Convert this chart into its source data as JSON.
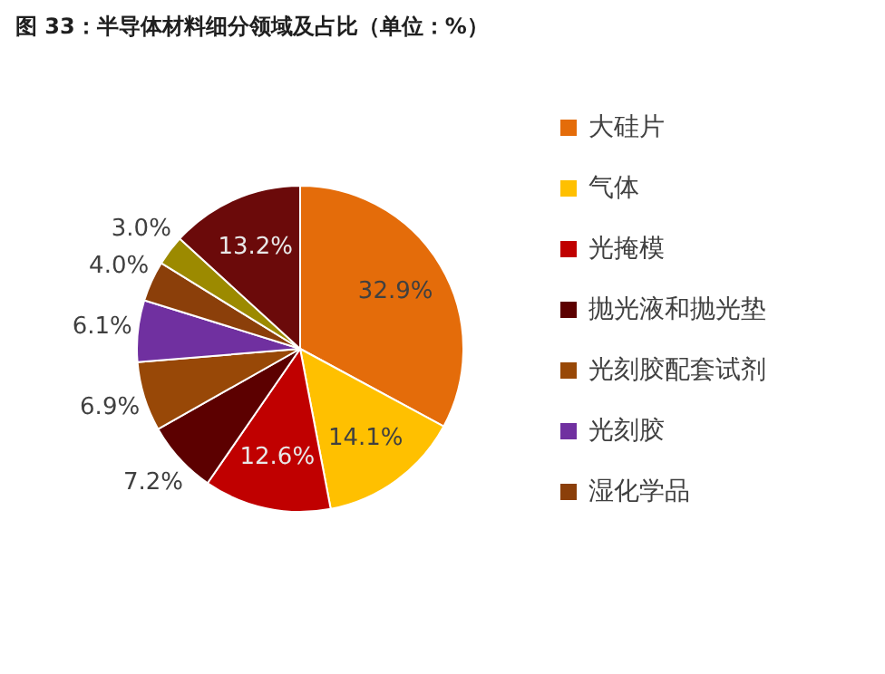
{
  "chart_data": {
    "type": "pie",
    "title": "图 33：半导体材料细分领域及占比（单位：%）",
    "categories": [
      "大硅片",
      "气体",
      "光掩模",
      "抛光液和抛光垫",
      "光刻胶配套试剂",
      "光刻胶",
      "湿化学品",
      null,
      null
    ],
    "values": [
      32.9,
      14.1,
      12.6,
      7.2,
      6.9,
      6.1,
      4.0,
      3.0,
      13.2
    ],
    "value_labels": [
      "32.9%",
      "14.1%",
      "12.6%",
      "7.2%",
      "6.9%",
      "6.1%",
      "4.0%",
      "3.0%",
      "13.2%"
    ],
    "colors": [
      "#e46c0a",
      "#ffc000",
      "#c00000",
      "#5c0000",
      "#984807",
      "#7030a0",
      "#8b3f0a",
      "#9c8a00",
      "#6b0a0a"
    ],
    "legend": "right"
  }
}
